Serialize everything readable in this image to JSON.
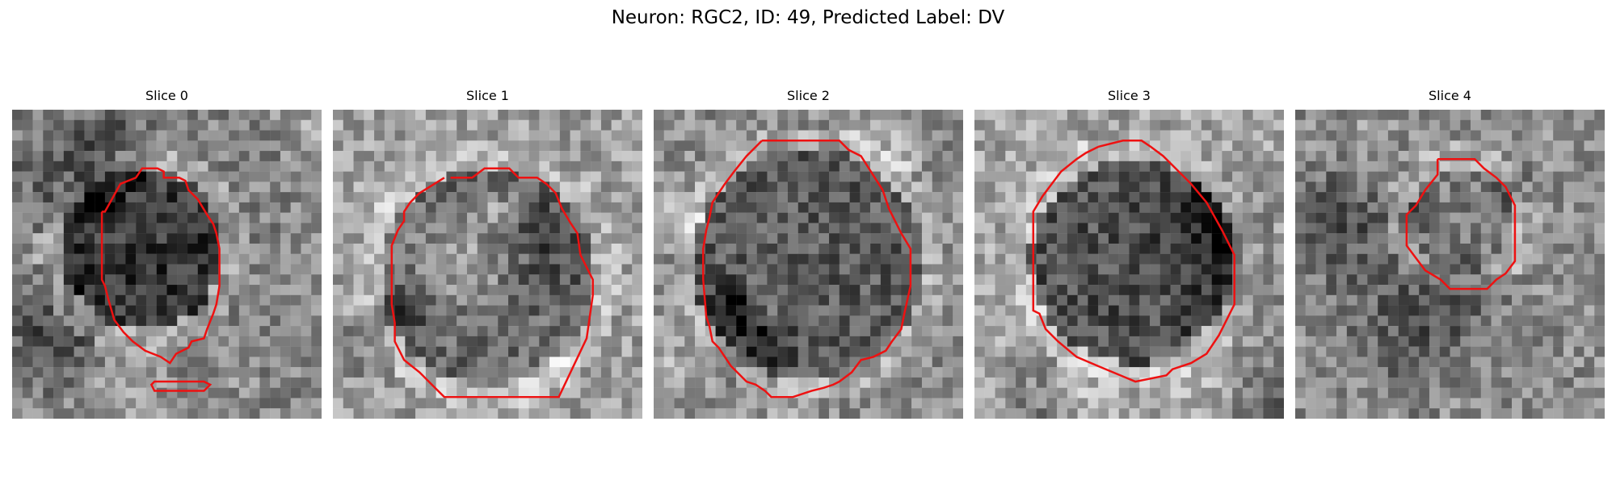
{
  "figure": {
    "title": "Neuron: RGC2, ID: 49, Predicted Label: DV"
  },
  "panels": [
    {
      "title": "Slice 0",
      "seed": 11,
      "cell_cx": 0.42,
      "cell_cy": 0.45,
      "cell_r": 0.26,
      "cell_dark": 0.55,
      "bg": 0.52
    },
    {
      "title": "Slice 1",
      "seed": 23,
      "cell_cx": 0.5,
      "cell_cy": 0.54,
      "cell_r": 0.35,
      "cell_dark": 0.38,
      "bg": 0.62
    },
    {
      "title": "Slice 2",
      "seed": 37,
      "cell_cx": 0.5,
      "cell_cy": 0.5,
      "cell_r": 0.37,
      "cell_dark": 0.35,
      "bg": 0.55
    },
    {
      "title": "Slice 3",
      "seed": 41,
      "cell_cx": 0.51,
      "cell_cy": 0.49,
      "cell_r": 0.33,
      "cell_dark": 0.6,
      "bg": 0.64
    },
    {
      "title": "Slice 4",
      "seed": 53,
      "cell_cx": 0.54,
      "cell_cy": 0.36,
      "cell_r": 0.17,
      "cell_dark": 0.1,
      "bg": 0.55
    }
  ],
  "colors": {
    "contour": "#ee1111"
  }
}
